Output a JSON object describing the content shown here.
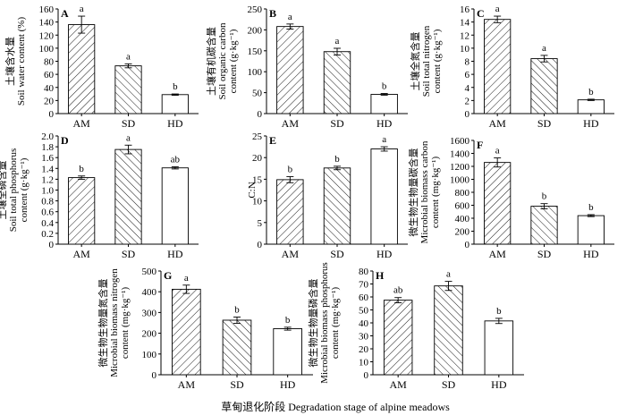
{
  "figure": {
    "xlabel": "草甸退化阶段 Degradation stage of alpine meadows"
  },
  "chart_data": [
    {
      "panel": "A",
      "type": "bar",
      "categories": [
        "AM",
        "SD",
        "HD"
      ],
      "values": [
        136,
        73,
        29
      ],
      "errors": [
        13,
        3,
        1
      ],
      "letters": [
        "a",
        "a",
        "b"
      ],
      "ylabel": [
        "土壤含水量",
        "Soil water content (%)"
      ],
      "ylim": [
        0,
        160
      ],
      "yticks": [
        0,
        20,
        40,
        60,
        80,
        100,
        120,
        140,
        160
      ],
      "fills": [
        "hatch-right",
        "hatch-left",
        "white"
      ]
    },
    {
      "panel": "B",
      "type": "bar",
      "categories": [
        "AM",
        "SD",
        "HD"
      ],
      "values": [
        208,
        148,
        46
      ],
      "errors": [
        6,
        8,
        2
      ],
      "letters": [
        "a",
        "a",
        "b"
      ],
      "ylabel": [
        "土壤有机碳含量",
        "Soil organic carbon",
        "content (g·kg⁻¹)"
      ],
      "ylim": [
        0,
        250
      ],
      "yticks": [
        0,
        50,
        100,
        150,
        200,
        250
      ],
      "fills": [
        "hatch-right",
        "hatch-left",
        "white"
      ]
    },
    {
      "panel": "C",
      "type": "bar",
      "categories": [
        "AM",
        "SD",
        "HD"
      ],
      "values": [
        14.4,
        8.4,
        2.1
      ],
      "errors": [
        0.5,
        0.5,
        0.1
      ],
      "letters": [
        "a",
        "a",
        "b"
      ],
      "ylabel": [
        "土壤全氮含量",
        "Soil total nitrogen",
        "content (g·kg⁻¹)"
      ],
      "ylim": [
        0,
        16
      ],
      "yticks": [
        0,
        2,
        4,
        6,
        8,
        10,
        12,
        14,
        16
      ],
      "fills": [
        "hatch-right",
        "hatch-left",
        "white"
      ]
    },
    {
      "panel": "D",
      "type": "bar",
      "categories": [
        "AM",
        "SD",
        "HD"
      ],
      "values": [
        1.23,
        1.75,
        1.41
      ],
      "errors": [
        0.03,
        0.08,
        0.02
      ],
      "letters": [
        "b",
        "a",
        "ab"
      ],
      "ylabel": [
        "土壤全磷含量",
        "Soil total phosphorus",
        "content (g·kg⁻¹)"
      ],
      "ylim": [
        0,
        2.0
      ],
      "yticks": [
        0,
        0.2,
        0.4,
        0.6,
        0.8,
        1.0,
        1.2,
        1.4,
        1.6,
        1.8,
        2.0
      ],
      "ytick_labels": [
        "0",
        "0.2",
        "0.4",
        "0.6",
        "0.8",
        "1.0",
        "1.2",
        "1.4",
        "1.6",
        "1.8",
        "2.0"
      ],
      "fills": [
        "hatch-right",
        "hatch-left",
        "white"
      ]
    },
    {
      "panel": "E",
      "type": "bar",
      "categories": [
        "AM",
        "SD",
        "HD"
      ],
      "values": [
        14.9,
        17.6,
        22.0
      ],
      "errors": [
        0.7,
        0.4,
        0.5
      ],
      "letters": [
        "b",
        "b",
        "a"
      ],
      "ylabel": [
        "C:N"
      ],
      "ylim": [
        0,
        25
      ],
      "yticks": [
        0,
        5,
        10,
        15,
        20,
        25
      ],
      "fills": [
        "hatch-right",
        "hatch-left",
        "white"
      ]
    },
    {
      "panel": "F",
      "type": "bar",
      "categories": [
        "AM",
        "SD",
        "HD"
      ],
      "values": [
        1260,
        585,
        440
      ],
      "errors": [
        70,
        40,
        15
      ],
      "letters": [
        "a",
        "b",
        "b"
      ],
      "ylabel": [
        "微生物生物量碳含量",
        "Microbial biomass carbon",
        "content (mg·kg⁻¹)"
      ],
      "ylim": [
        0,
        1600
      ],
      "yticks": [
        0,
        200,
        400,
        600,
        800,
        1000,
        1200,
        1400,
        1600
      ],
      "fills": [
        "hatch-right",
        "hatch-left",
        "white"
      ]
    },
    {
      "panel": "G",
      "type": "bar",
      "categories": [
        "AM",
        "SD",
        "HD"
      ],
      "values": [
        412,
        263,
        222
      ],
      "errors": [
        20,
        15,
        7
      ],
      "letters": [
        "a",
        "b",
        "b"
      ],
      "ylabel": [
        "微生物生物量氮含量",
        "Microbial biomass nitrogen",
        "content (mg·kg⁻¹)"
      ],
      "ylim": [
        0,
        500
      ],
      "yticks": [
        0,
        100,
        200,
        300,
        400,
        500
      ],
      "fills": [
        "hatch-right",
        "hatch-left",
        "white"
      ]
    },
    {
      "panel": "H",
      "type": "bar",
      "categories": [
        "AM",
        "SD",
        "HD"
      ],
      "values": [
        57.5,
        68.5,
        41.5
      ],
      "errors": [
        2,
        3.5,
        2
      ],
      "letters": [
        "ab",
        "a",
        "b"
      ],
      "ylabel": [
        "微生物生物量磷含量",
        "Microbial biomass phosphorus",
        "content (mg·kg⁻¹)"
      ],
      "ylim": [
        0,
        80
      ],
      "yticks": [
        0,
        10,
        20,
        30,
        40,
        50,
        60,
        70,
        80
      ],
      "fills": [
        "hatch-right",
        "hatch-left",
        "white"
      ]
    }
  ]
}
